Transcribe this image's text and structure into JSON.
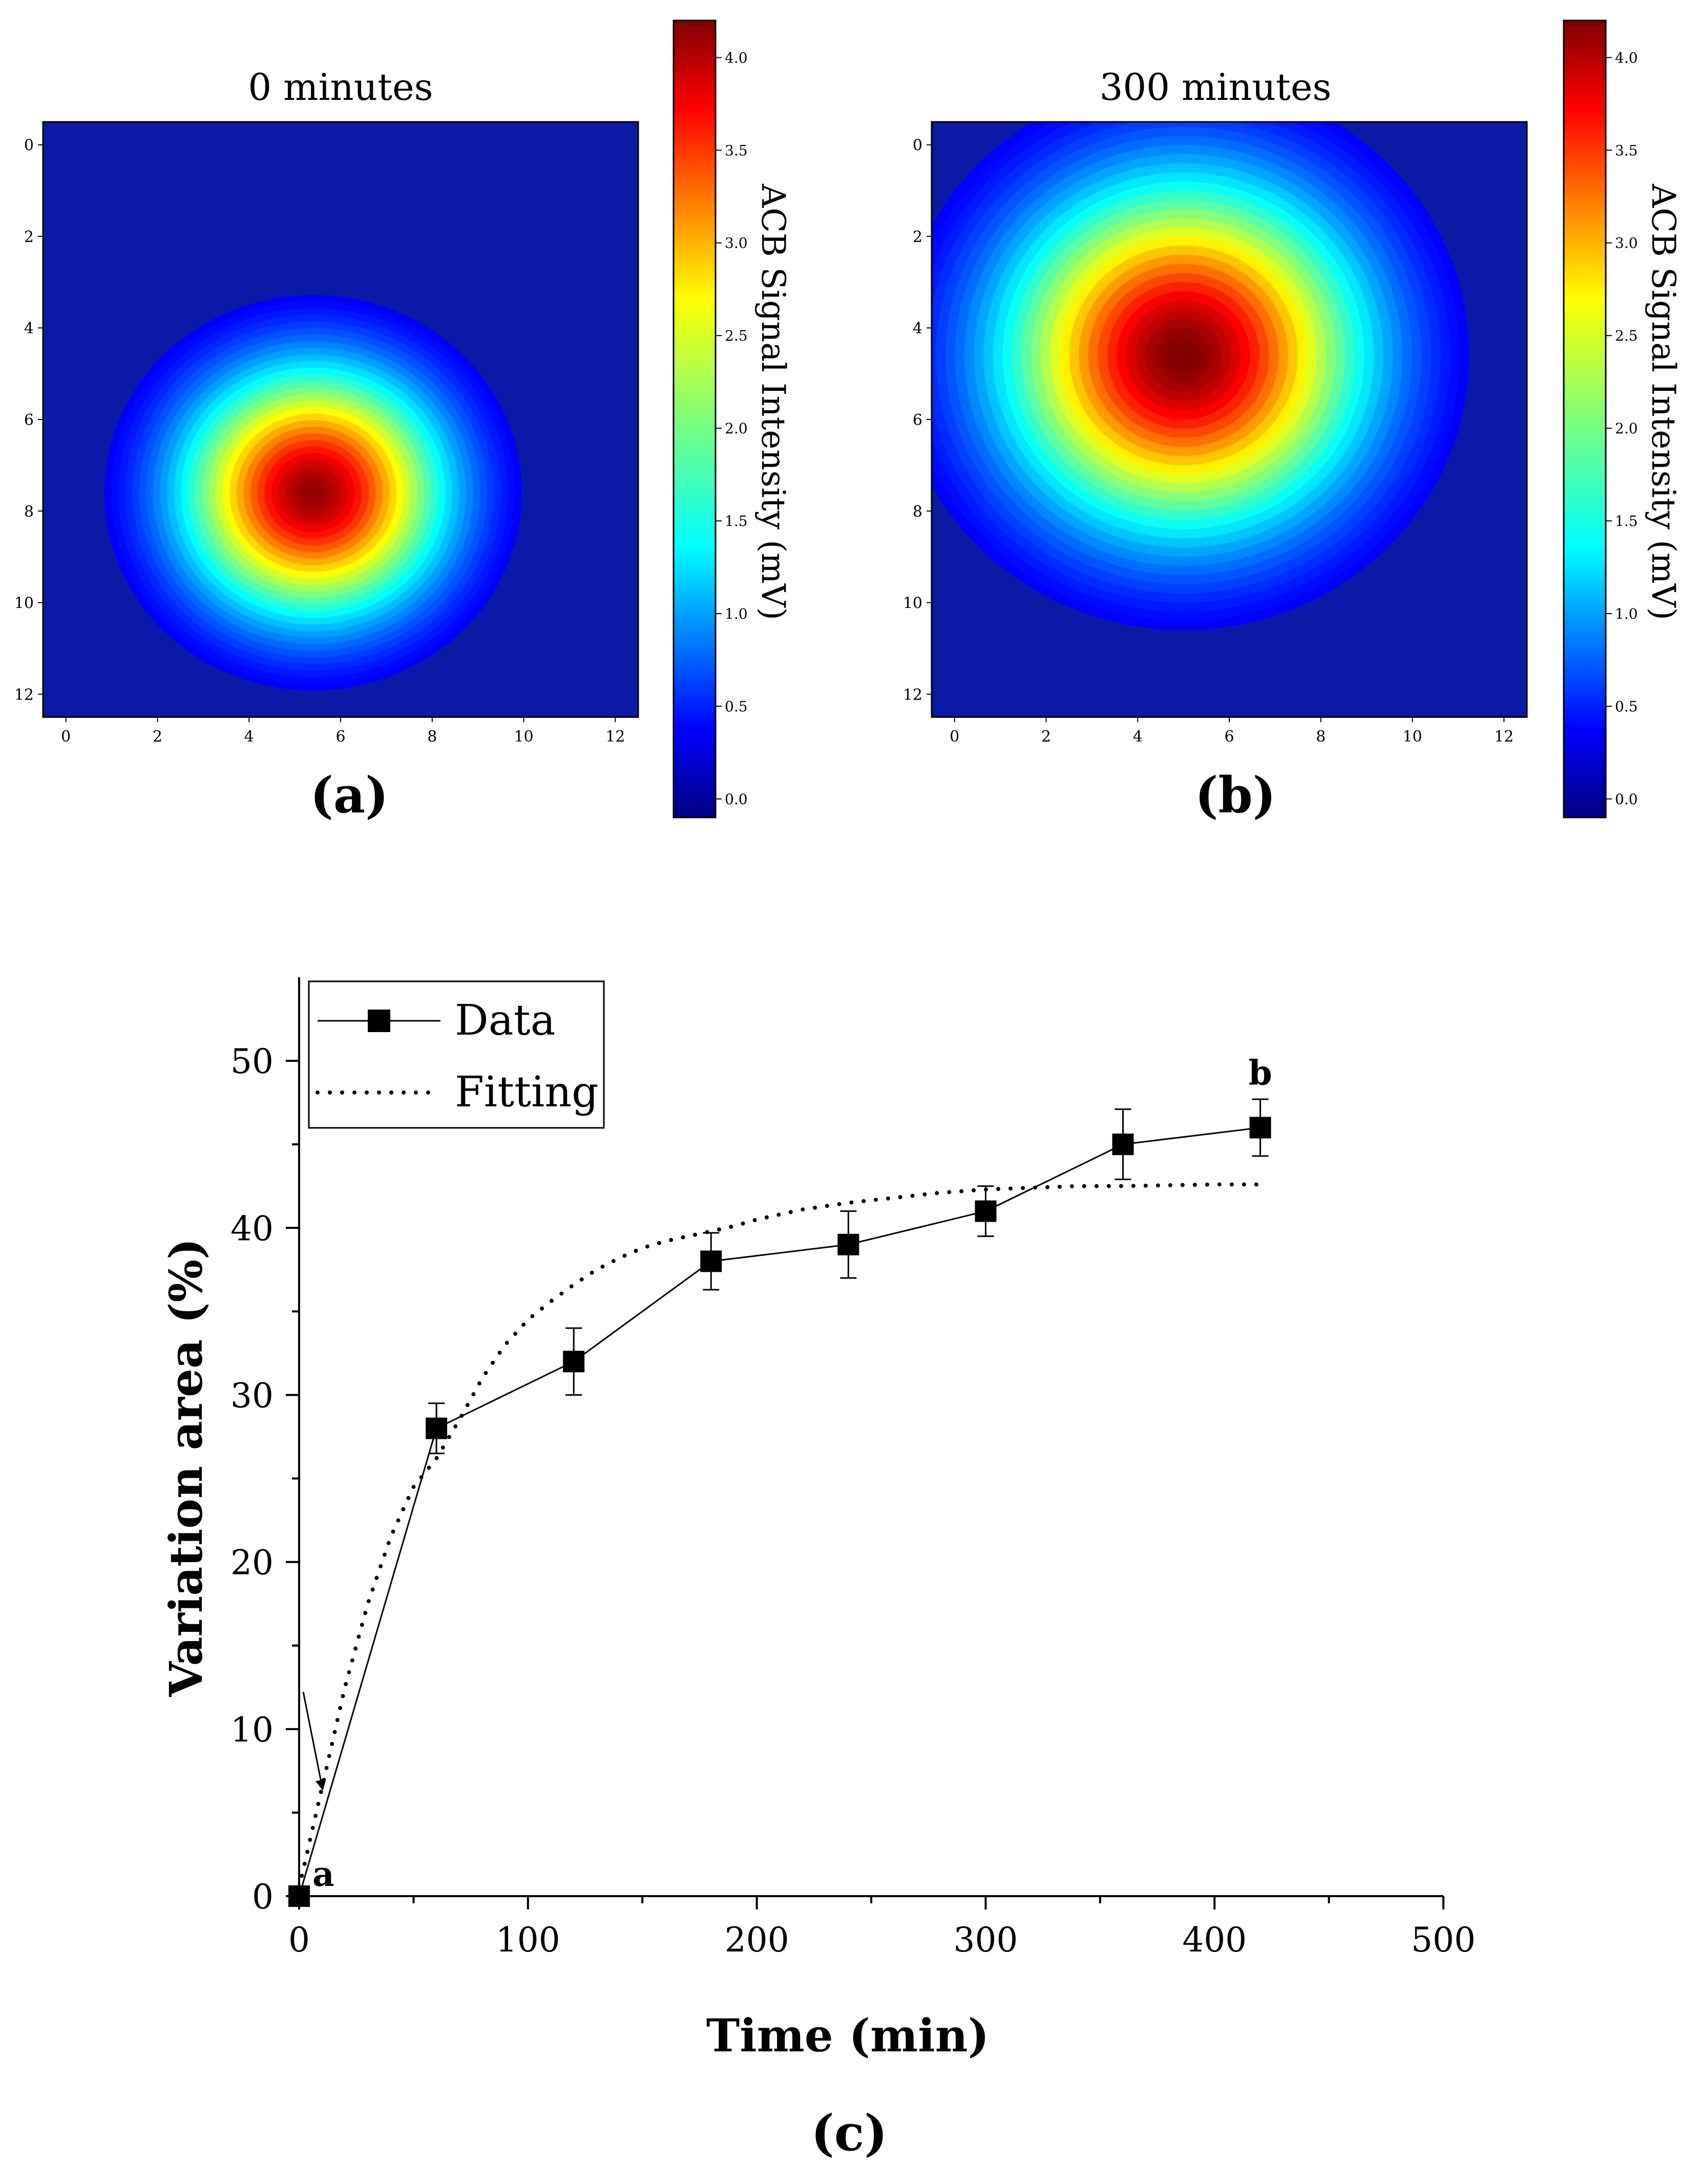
{
  "chart_data": [
    {
      "type": "heatmap",
      "panel_label": "(a)",
      "title": "0 minutes",
      "x_ticks": [
        "0",
        "2",
        "4",
        "6",
        "8",
        "10",
        "12"
      ],
      "y_ticks": [
        "0",
        "2",
        "4",
        "6",
        "8",
        "10",
        "12"
      ],
      "xlim": [
        -0.5,
        12.5
      ],
      "ylim": [
        12.5,
        -0.5
      ],
      "hotspot": {
        "x": 5.4,
        "y": 7.6,
        "peak_mV": 4.0,
        "sigma_x": 1.9,
        "sigma_y": 1.8
      },
      "colorbar": {
        "label": "ACB Signal Intensity (mV)",
        "ticks": [
          "0.0",
          "0.5",
          "1.0",
          "1.5",
          "2.0",
          "2.5",
          "3.0",
          "3.5",
          "4.0"
        ],
        "range": [
          -0.1,
          4.2
        ]
      }
    },
    {
      "type": "heatmap",
      "panel_label": "(b)",
      "title": "300 minutes",
      "x_ticks": [
        "0",
        "2",
        "4",
        "6",
        "8",
        "10",
        "12"
      ],
      "y_ticks": [
        "0",
        "2",
        "4",
        "6",
        "8",
        "10",
        "12"
      ],
      "xlim": [
        -0.5,
        12.5
      ],
      "ylim": [
        12.5,
        -0.5
      ],
      "hotspot": {
        "x": 5.0,
        "y": 4.6,
        "peak_mV": 4.1,
        "sigma_x": 2.6,
        "sigma_y": 2.5
      },
      "colorbar": {
        "label": "ACB Signal Intensity (mV)",
        "ticks": [
          "0.0",
          "0.5",
          "1.0",
          "1.5",
          "2.0",
          "2.5",
          "3.0",
          "3.5",
          "4.0"
        ],
        "range": [
          -0.1,
          4.2
        ]
      }
    },
    {
      "type": "line",
      "panel_label": "(c)",
      "xlabel": "Time (min)",
      "ylabel": "Variation area (%)",
      "xlim": [
        0,
        500
      ],
      "ylim": [
        0,
        55
      ],
      "x_ticks": [
        "0",
        "100",
        "200",
        "300",
        "400",
        "500"
      ],
      "y_ticks": [
        "0",
        "10",
        "20",
        "30",
        "40",
        "50"
      ],
      "legend": {
        "position": "top-left",
        "entries": [
          "Data",
          "Fitting"
        ]
      },
      "series": [
        {
          "name": "Data",
          "style": "solid line with square markers",
          "x": [
            0,
            60,
            120,
            180,
            240,
            300,
            360,
            420
          ],
          "y": [
            0,
            28,
            32,
            38,
            39,
            41,
            45,
            46
          ],
          "error": [
            0,
            1.5,
            2,
            1.7,
            2,
            1.5,
            2.1,
            1.7
          ]
        },
        {
          "name": "Fitting",
          "style": "dotted line",
          "x": [
            0,
            10,
            20,
            30,
            40,
            50,
            60,
            70,
            80,
            90,
            100,
            110,
            120,
            130,
            140,
            150,
            160,
            170,
            180,
            190,
            200,
            220,
            240,
            260,
            280,
            300,
            320,
            340,
            360,
            380,
            400,
            420
          ],
          "y": [
            0.5,
            6.5,
            12.5,
            17.5,
            21.5,
            24.5,
            26.2,
            28.5,
            31,
            33,
            34.5,
            35.6,
            36.6,
            37.5,
            38.2,
            38.8,
            39.2,
            39.5,
            39.8,
            40.1,
            40.5,
            41.1,
            41.5,
            41.8,
            42.1,
            42.3,
            42.4,
            42.5,
            42.5,
            42.55,
            42.6,
            42.6
          ]
        }
      ],
      "annotations": [
        {
          "text": "a",
          "x": 0,
          "y": 0
        },
        {
          "text": "b",
          "x": 420,
          "y": 46
        }
      ]
    }
  ]
}
